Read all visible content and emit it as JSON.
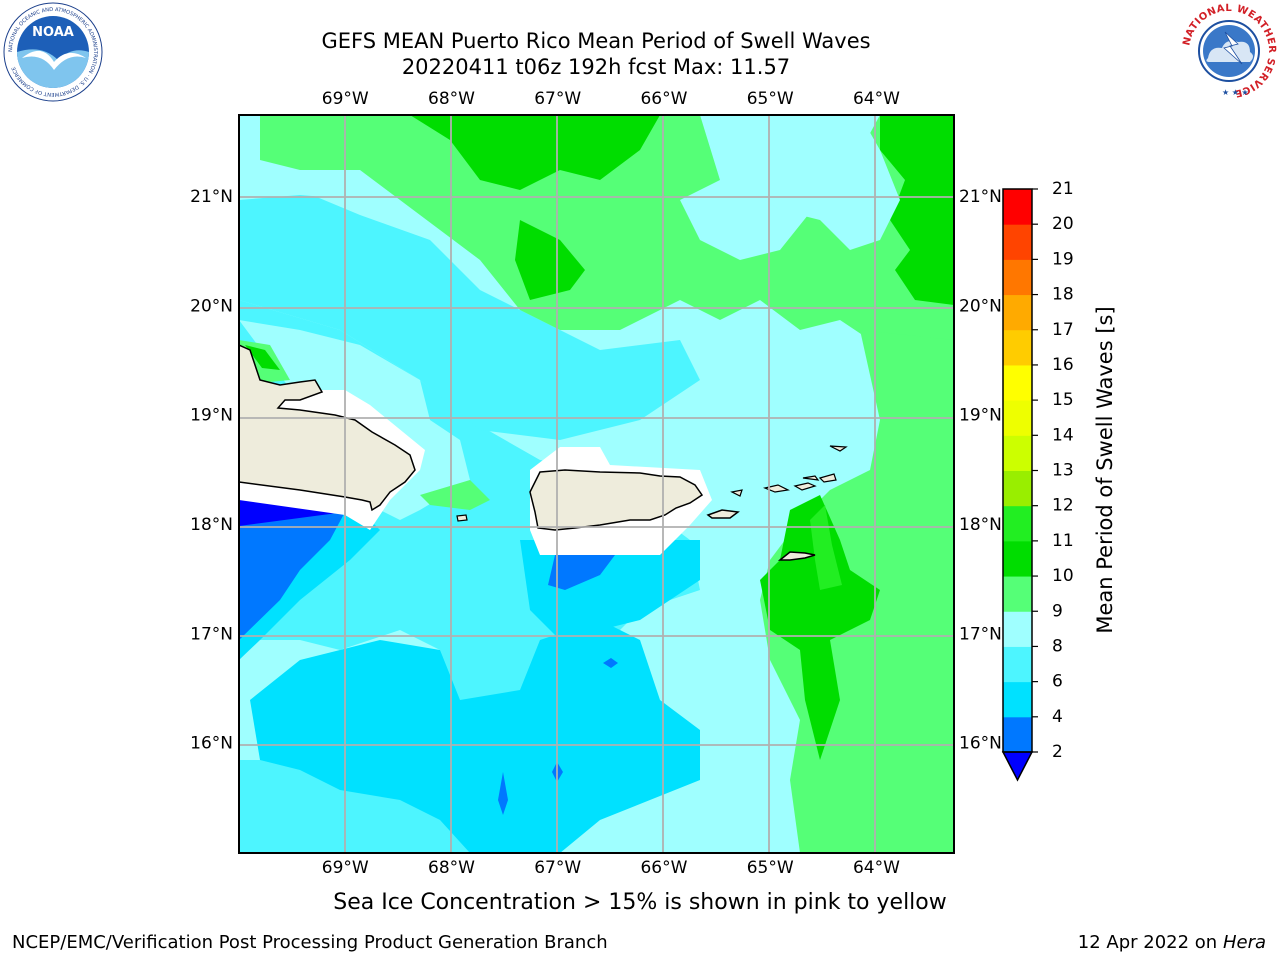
{
  "header": {
    "title_line1": "GEFS MEAN Puerto Rico Mean Period of Swell Waves",
    "title_line2": "20220411 t06z 192h fcst   Max: 11.57"
  },
  "logos": {
    "noaa": {
      "name": "noaa-logo",
      "text": "NOAA",
      "ring_text": "NATIONAL OCEANIC AND ATMOSPHERIC ADMINISTRATION · U.S. DEPARTMENT OF COMMERCE"
    },
    "nws": {
      "name": "nws-logo",
      "ring_text": "NATIONAL WEATHER SERVICE"
    }
  },
  "map": {
    "lon_ticks": [
      "69°W",
      "68°W",
      "67°W",
      "66°W",
      "65°W",
      "64°W"
    ],
    "lat_ticks": [
      "21°N",
      "20°N",
      "19°N",
      "18°N",
      "17°N",
      "16°N"
    ],
    "lon_values": [
      -69,
      -68,
      -67,
      -66,
      -65,
      -64
    ],
    "lat_values": [
      21,
      20,
      19,
      18,
      17,
      16
    ],
    "extent": {
      "lon_min": -70.0,
      "lon_max": -63.27,
      "lat_min": 15.0,
      "lat_max": 21.75
    },
    "land_color": "#eeecdc",
    "grid_color": "#b0b0b0"
  },
  "colorbar": {
    "title": "Mean Period of Swell Waves [s]",
    "levels": [
      2,
      4,
      6,
      8,
      9,
      10,
      11,
      12,
      13,
      14,
      15,
      16,
      17,
      18,
      19,
      20,
      21
    ],
    "colors": [
      "#0000ff",
      "#0078ff",
      "#00e1ff",
      "#4df5ff",
      "#9fffff",
      "#55ff77",
      "#00dd00",
      "#22ee22",
      "#99ee00",
      "#ccff00",
      "#eeff00",
      "#ffff00",
      "#ffcc00",
      "#ffaa00",
      "#ff7700",
      "#ff4400",
      "#ff0000"
    ],
    "extend_color": "#0000ff"
  },
  "chart_data": {
    "type": "heatmap",
    "title": "GEFS MEAN Puerto Rico Mean Period of Swell Waves",
    "subtitle": "20220411 t06z 192h fcst   Max: 11.57",
    "variable": "Mean Period of Swell Waves [s]",
    "max_value": 11.57,
    "lon_range": [
      -70.0,
      -63.27
    ],
    "lat_range": [
      15.0,
      21.75
    ],
    "colorbar_levels": [
      2,
      4,
      6,
      8,
      9,
      10,
      11,
      12,
      13,
      14,
      15,
      16,
      17,
      18,
      19,
      20,
      21
    ]
  },
  "caption": "Sea Ice Concentration > 15% is shown in pink to yellow",
  "footer": {
    "left": "NCEP/EMC/Verification Post Processing Product Generation Branch",
    "right_prefix": "12 Apr 2022 on ",
    "right_host": "Hera"
  }
}
